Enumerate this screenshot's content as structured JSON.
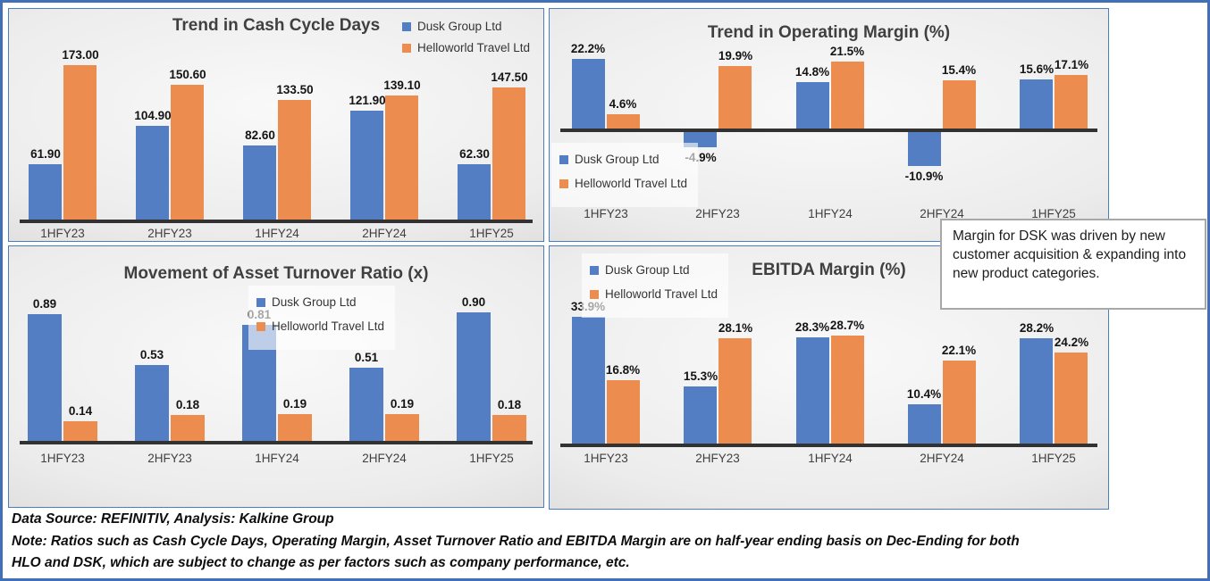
{
  "colors": {
    "dusk_blue": "#547EC4",
    "helloworld_orange": "#ED8C4F",
    "axis": "#323232",
    "frame_blue": "#4170b8"
  },
  "chart_data": [
    {
      "id": "cash-cycle",
      "type": "bar",
      "title": "Trend in Cash Cycle Days",
      "categories": [
        "1HFY23",
        "2HFY23",
        "1HFY24",
        "2HFY24",
        "1HFY25"
      ],
      "series": [
        {
          "name": "Dusk Group Ltd",
          "color_key": "dusk_blue",
          "values": [
            61.9,
            104.9,
            82.6,
            121.9,
            62.3
          ],
          "labels": [
            "61.90",
            "104.90",
            "82.60",
            "121.90",
            "62.30"
          ]
        },
        {
          "name": "Helloworld Travel Ltd",
          "color_key": "helloworld_orange",
          "values": [
            173.0,
            150.6,
            133.5,
            139.1,
            147.5
          ],
          "labels": [
            "173.00",
            "150.60",
            "133.50",
            "139.10",
            "147.50"
          ]
        }
      ],
      "ylim": [
        0,
        200
      ],
      "grid": false,
      "legend_position": "top-right"
    },
    {
      "id": "operating-margin",
      "type": "bar",
      "title": "Trend in Operating Margin (%)",
      "categories": [
        "1HFY23",
        "2HFY23",
        "1HFY24",
        "2HFY24",
        "1HFY25"
      ],
      "series": [
        {
          "name": "Dusk Group Ltd",
          "color_key": "dusk_blue",
          "values": [
            22.2,
            -4.9,
            14.8,
            -10.9,
            15.6
          ],
          "labels": [
            "22.2%",
            "-4.9%",
            "14.8%",
            "-10.9%",
            "15.6%"
          ]
        },
        {
          "name": "Helloworld Travel Ltd",
          "color_key": "helloworld_orange",
          "values": [
            4.6,
            19.9,
            21.5,
            15.4,
            17.1
          ],
          "labels": [
            "4.6%",
            "19.9%",
            "21.5%",
            "15.4%",
            "17.1%"
          ]
        }
      ],
      "ylim": [
        -15,
        25
      ],
      "grid": false,
      "legend_position": "middle-left"
    },
    {
      "id": "asset-turnover",
      "type": "bar",
      "title": "Movement of Asset Turnover Ratio (x)",
      "categories": [
        "1HFY23",
        "2HFY23",
        "1HFY24",
        "2HFY24",
        "1HFY25"
      ],
      "series": [
        {
          "name": "Dusk Group Ltd",
          "color_key": "dusk_blue",
          "values": [
            0.89,
            0.53,
            0.81,
            0.51,
            0.9
          ],
          "labels": [
            "0.89",
            "0.53",
            "0.81",
            "0.51",
            "0.90"
          ]
        },
        {
          "name": "Helloworld Travel Ltd",
          "color_key": "helloworld_orange",
          "values": [
            0.14,
            0.18,
            0.19,
            0.19,
            0.18
          ],
          "labels": [
            "0.14",
            "0.18",
            "0.19",
            "0.19",
            "0.18"
          ]
        }
      ],
      "ylim": [
        0,
        1.0
      ],
      "grid": false,
      "legend_position": "top-right-inner"
    },
    {
      "id": "ebitda-margin",
      "type": "bar",
      "title": "EBITDA Margin (%)",
      "categories": [
        "1HFY23",
        "2HFY23",
        "1HFY24",
        "2HFY24",
        "1HFY25"
      ],
      "series": [
        {
          "name": "Dusk Group Ltd",
          "color_key": "dusk_blue",
          "values": [
            33.9,
            15.3,
            28.3,
            10.4,
            28.2
          ],
          "labels": [
            "33.9%",
            "15.3%",
            "28.3%",
            "10.4%",
            "28.2%"
          ]
        },
        {
          "name": "Helloworld Travel Ltd",
          "color_key": "helloworld_orange",
          "values": [
            16.8,
            28.1,
            28.7,
            22.1,
            24.2
          ],
          "labels": [
            "16.8%",
            "28.1%",
            "28.7%",
            "22.1%",
            "24.2%"
          ]
        }
      ],
      "ylim": [
        0,
        40
      ],
      "grid": false,
      "legend_position": "top-left"
    }
  ],
  "callout": {
    "text": "Margin for DSK was driven by new customer acquisition & expanding into new product categories."
  },
  "footer": {
    "line1": "Data Source: REFINITIV, Analysis: Kalkine Group",
    "line2": "Note: Ratios such as Cash Cycle Days, Operating Margin, Asset Turnover Ratio and EBITDA Margin are on half-year ending basis on Dec-Ending for both",
    "line3": "HLO and DSK, which are subject to change as per factors such as company performance, etc."
  }
}
